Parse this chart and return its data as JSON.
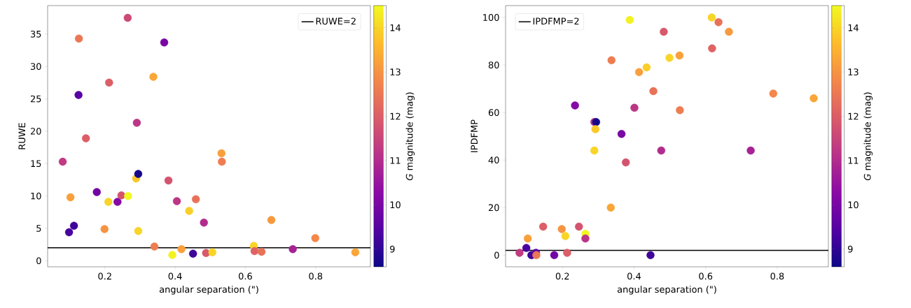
{
  "chart_data": [
    {
      "type": "scatter",
      "xlabel": "angular separation (\")",
      "ylabel": "RUWE",
      "clabel": "*G* magnitude (mag)",
      "xlim": [
        0.037,
        0.956
      ],
      "ylim": [
        -0.93,
        39.4
      ],
      "xticks": [
        0.2,
        0.4,
        0.6,
        0.8
      ],
      "yticks": [
        0,
        5,
        10,
        15,
        20,
        25,
        30,
        35
      ],
      "clim": [
        8.6,
        14.5
      ],
      "cticks": [
        9,
        10,
        11,
        12,
        13,
        14
      ],
      "marker": "circle",
      "legend": "top right",
      "ref_lines": [
        {
          "axis": "y",
          "value": 2,
          "label": "RUWE=2",
          "color": "#000000"
        }
      ],
      "x": [
        0.08,
        0.098,
        0.112,
        0.102,
        0.126,
        0.125,
        0.146,
        0.177,
        0.199,
        0.212,
        0.21,
        0.236,
        0.247,
        0.266,
        0.265,
        0.291,
        0.289,
        0.295,
        0.295,
        0.338,
        0.341,
        0.369,
        0.381,
        0.392,
        0.405,
        0.418,
        0.44,
        0.451,
        0.459,
        0.482,
        0.488,
        0.506,
        0.532,
        0.533,
        0.624,
        0.626,
        0.646,
        0.674,
        0.735,
        0.799,
        0.913
      ],
      "values": [
        15.3,
        4.4,
        5.4,
        9.8,
        34.3,
        25.6,
        18.9,
        10.6,
        4.9,
        27.5,
        9.1,
        9.1,
        10.1,
        10.0,
        37.5,
        21.3,
        12.7,
        13.4,
        4.6,
        28.4,
        2.2,
        33.7,
        12.4,
        0.9,
        9.2,
        1.8,
        7.7,
        1.1,
        9.5,
        5.9,
        1.2,
        1.3,
        16.6,
        15.3,
        2.3,
        1.5,
        1.4,
        6.3,
        1.8,
        3.5,
        1.3
      ],
      "cvalues": [
        11.3,
        9.3,
        9.2,
        13.2,
        12.5,
        9.5,
        12.0,
        9.9,
        13.0,
        12.0,
        14.0,
        10.2,
        11.8,
        14.5,
        11.6,
        11.2,
        13.8,
        8.7,
        14.0,
        13.3,
        12.6,
        10.0,
        11.8,
        14.4,
        11.2,
        13.2,
        13.9,
        9.2,
        12.4,
        11.0,
        11.9,
        14.0,
        13.2,
        12.6,
        14.0,
        12.1,
        12.4,
        13.1,
        10.8,
        12.8,
        13.3
      ]
    },
    {
      "type": "scatter",
      "xlabel": "angular separation (\")",
      "ylabel": "IPDFMP",
      "clabel": "*G* magnitude (mag)",
      "xlim": [
        0.041,
        0.943
      ],
      "ylim": [
        -4.9,
        105
      ],
      "xticks": [
        0.2,
        0.4,
        0.6,
        0.8
      ],
      "yticks": [
        0,
        20,
        40,
        60,
        80,
        100
      ],
      "clim": [
        8.6,
        14.5
      ],
      "cticks": [
        9,
        10,
        11,
        12,
        13,
        14
      ],
      "marker": "circle",
      "legend": "top left",
      "ref_lines": [
        {
          "axis": "y",
          "value": 2,
          "label": "IPDFMP=2",
          "color": "#000000"
        }
      ],
      "x": [
        0.08,
        0.099,
        0.103,
        0.113,
        0.126,
        0.127,
        0.146,
        0.177,
        0.198,
        0.208,
        0.213,
        0.235,
        0.246,
        0.264,
        0.264,
        0.289,
        0.294,
        0.292,
        0.289,
        0.335,
        0.337,
        0.365,
        0.377,
        0.388,
        0.401,
        0.414,
        0.435,
        0.446,
        0.454,
        0.476,
        0.483,
        0.499,
        0.527,
        0.528,
        0.617,
        0.618,
        0.636,
        0.665,
        0.726,
        0.789,
        0.902
      ],
      "values": [
        1,
        3,
        7,
        0,
        1,
        0,
        12,
        0,
        11,
        8,
        1,
        63,
        12,
        9,
        7,
        56,
        56,
        53,
        44,
        20,
        82,
        51,
        39,
        99,
        62,
        77,
        79,
        0,
        69,
        44,
        94,
        83,
        84,
        61,
        100,
        87,
        98,
        94,
        44,
        68,
        66
      ],
      "cvalues": [
        11.3,
        9.3,
        13.2,
        9.2,
        9.5,
        12.5,
        12.0,
        9.9,
        13.0,
        14.0,
        12.0,
        10.2,
        11.8,
        14.5,
        11.2,
        11.2,
        8.7,
        13.8,
        14.0,
        13.3,
        12.6,
        10.0,
        11.8,
        14.4,
        11.2,
        13.2,
        13.9,
        9.2,
        12.4,
        11.0,
        11.9,
        14.0,
        13.2,
        12.6,
        14.0,
        12.1,
        12.4,
        13.1,
        10.8,
        12.8,
        13.3
      ]
    }
  ]
}
